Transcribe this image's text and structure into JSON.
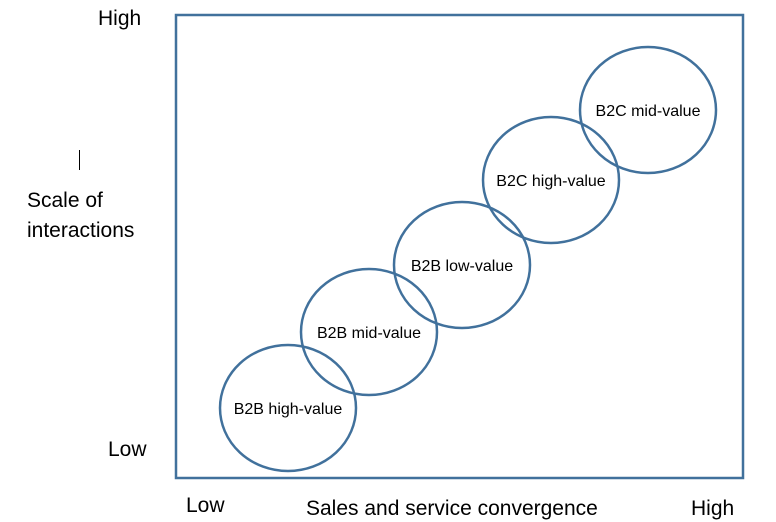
{
  "axes": {
    "y_high": "High",
    "y_low": "Low",
    "y_label": "Scale of\ninteractions",
    "x_low": "Low",
    "x_label": "Sales and service convergence",
    "x_high": "High"
  },
  "segments": [
    "B2B high-value",
    "B2B mid-value",
    "B2B low-value",
    "B2C high-value",
    "B2C mid-value"
  ],
  "colors": {
    "frame": "#41719C",
    "ellipse": "#41719C",
    "text": "#000000"
  }
}
